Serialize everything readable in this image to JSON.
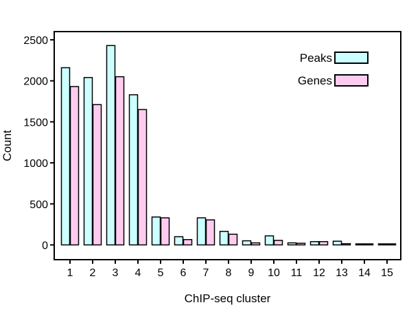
{
  "colors": {
    "peaks": "#ccffff",
    "genes": "#ffccf0",
    "axis": "#000000",
    "background": "#ffffff"
  },
  "chart_data": {
    "type": "bar",
    "title": "",
    "xlabel": "ChIP-seq cluster",
    "ylabel": "Count",
    "categories": [
      "1",
      "2",
      "3",
      "4",
      "5",
      "6",
      "7",
      "8",
      "9",
      "10",
      "11",
      "12",
      "13",
      "14",
      "15"
    ],
    "series": [
      {
        "name": "Peaks",
        "color_key": "peaks",
        "values": [
          2160,
          2040,
          2430,
          1830,
          340,
          100,
          330,
          165,
          50,
          110,
          25,
          40,
          45,
          5,
          3
        ]
      },
      {
        "name": "Genes",
        "color_key": "genes",
        "values": [
          1930,
          1710,
          2050,
          1650,
          330,
          65,
          305,
          130,
          25,
          55,
          20,
          40,
          15,
          3,
          2
        ]
      }
    ],
    "ylim": [
      -180,
      2600
    ],
    "yticks": [
      0,
      500,
      1000,
      1500,
      2000,
      2500
    ],
    "ytick_labels": [
      "0",
      "500",
      "1000",
      "1500",
      "2000",
      "2500"
    ],
    "grid": false,
    "legend_position": "top-right"
  }
}
